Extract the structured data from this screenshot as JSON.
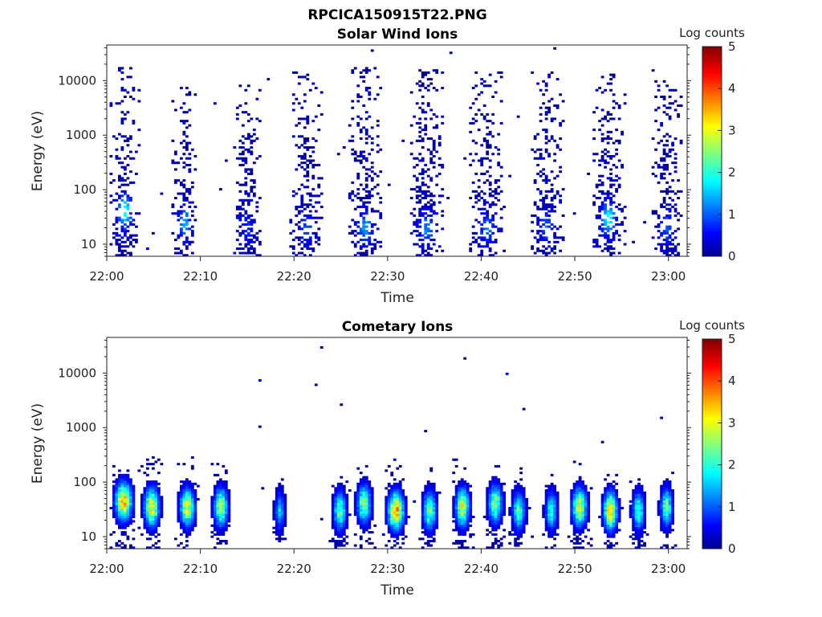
{
  "figure": {
    "title": "RPCICA150915T22.PNG"
  },
  "chart_data": [
    {
      "type": "heatmap",
      "title": "Solar Wind Ions",
      "xlabel": "Time",
      "ylabel": "Energy (eV)",
      "yscale": "log",
      "ylim": [
        6,
        45000
      ],
      "y_ticks": [
        "10",
        "100",
        "1000",
        "10000"
      ],
      "x_ticks": [
        "22:00",
        "22:10",
        "22:20",
        "22:30",
        "22:40",
        "22:50",
        "23:00"
      ],
      "xlim_minutes": [
        0,
        62
      ],
      "colorbar": {
        "title": "Log counts",
        "ticks": [
          "0",
          "1",
          "2",
          "3",
          "4",
          "5"
        ],
        "range": [
          0,
          5
        ],
        "colormap": "jet"
      },
      "bursts": [
        {
          "time_min": 1.9,
          "energy_max_eV": 20000,
          "peak_energy_eV": 40,
          "peak_log_counts": 1.9,
          "width_min": 3.0
        },
        {
          "time_min": 8.3,
          "energy_max_eV": 8000,
          "peak_energy_eV": 25,
          "peak_log_counts": 1.4,
          "width_min": 2.6
        },
        {
          "time_min": 15.0,
          "energy_max_eV": 9000,
          "peak_energy_eV": 20,
          "peak_log_counts": 0.6,
          "width_min": 2.8
        },
        {
          "time_min": 21.3,
          "energy_max_eV": 15000,
          "peak_energy_eV": 20,
          "peak_log_counts": 0.8,
          "width_min": 3.2
        },
        {
          "time_min": 27.6,
          "energy_max_eV": 18000,
          "peak_energy_eV": 20,
          "peak_log_counts": 1.2,
          "width_min": 3.4
        },
        {
          "time_min": 34.2,
          "energy_max_eV": 16000,
          "peak_energy_eV": 20,
          "peak_log_counts": 1.1,
          "width_min": 3.4
        },
        {
          "time_min": 40.6,
          "energy_max_eV": 15000,
          "peak_energy_eV": 20,
          "peak_log_counts": 1.0,
          "width_min": 3.4
        },
        {
          "time_min": 47.0,
          "energy_max_eV": 15000,
          "peak_energy_eV": 20,
          "peak_log_counts": 0.9,
          "width_min": 3.2
        },
        {
          "time_min": 53.6,
          "energy_max_eV": 14000,
          "peak_energy_eV": 30,
          "peak_log_counts": 1.8,
          "width_min": 3.2
        },
        {
          "time_min": 59.8,
          "energy_max_eV": 12000,
          "peak_energy_eV": 20,
          "peak_log_counts": 0.9,
          "width_min": 3.0
        }
      ]
    },
    {
      "type": "heatmap",
      "title": "Cometary Ions",
      "xlabel": "Time",
      "ylabel": "Energy (eV)",
      "yscale": "log",
      "ylim": [
        6,
        45000
      ],
      "y_ticks": [
        "10",
        "100",
        "1000",
        "10000"
      ],
      "x_ticks": [
        "22:00",
        "22:10",
        "22:20",
        "22:30",
        "22:40",
        "22:50",
        "23:00"
      ],
      "xlim_minutes": [
        0,
        62
      ],
      "colorbar": {
        "title": "Log counts",
        "ticks": [
          "0",
          "1",
          "2",
          "3",
          "4",
          "5"
        ],
        "range": [
          0,
          5
        ],
        "colormap": "jet"
      },
      "bursts": [
        {
          "time_min": 1.8,
          "energy_max_eV": 250,
          "peak_energy_eV": 45,
          "peak_log_counts": 3.4,
          "width_min": 3.0
        },
        {
          "time_min": 4.8,
          "energy_max_eV": 300,
          "peak_energy_eV": 35,
          "peak_log_counts": 3.2,
          "width_min": 2.6
        },
        {
          "time_min": 8.6,
          "energy_max_eV": 250,
          "peak_energy_eV": 35,
          "peak_log_counts": 2.9,
          "width_min": 2.6
        },
        {
          "time_min": 12.2,
          "energy_max_eV": 250,
          "peak_energy_eV": 35,
          "peak_log_counts": 2.8,
          "width_min": 2.4
        },
        {
          "time_min": 18.5,
          "energy_max_eV": 120,
          "peak_energy_eV": 30,
          "peak_log_counts": 1.6,
          "width_min": 1.6
        },
        {
          "time_min": 24.9,
          "energy_max_eV": 200,
          "peak_energy_eV": 30,
          "peak_log_counts": 2.4,
          "width_min": 2.2
        },
        {
          "time_min": 27.5,
          "energy_max_eV": 250,
          "peak_energy_eV": 40,
          "peak_log_counts": 2.6,
          "width_min": 2.4
        },
        {
          "time_min": 30.9,
          "energy_max_eV": 300,
          "peak_energy_eV": 30,
          "peak_log_counts": 3.6,
          "width_min": 2.8
        },
        {
          "time_min": 34.5,
          "energy_max_eV": 200,
          "peak_energy_eV": 30,
          "peak_log_counts": 2.4,
          "width_min": 2.4
        },
        {
          "time_min": 38.0,
          "energy_max_eV": 300,
          "peak_energy_eV": 35,
          "peak_log_counts": 3.0,
          "width_min": 2.4
        },
        {
          "time_min": 41.5,
          "energy_max_eV": 300,
          "peak_energy_eV": 40,
          "peak_log_counts": 2.6,
          "width_min": 2.4
        },
        {
          "time_min": 44.0,
          "energy_max_eV": 200,
          "peak_energy_eV": 30,
          "peak_log_counts": 2.2,
          "width_min": 2.2
        },
        {
          "time_min": 47.5,
          "energy_max_eV": 150,
          "peak_energy_eV": 30,
          "peak_log_counts": 2.0,
          "width_min": 2.0
        },
        {
          "time_min": 50.5,
          "energy_max_eV": 250,
          "peak_energy_eV": 35,
          "peak_log_counts": 3.0,
          "width_min": 2.6
        },
        {
          "time_min": 53.8,
          "energy_max_eV": 200,
          "peak_energy_eV": 30,
          "peak_log_counts": 3.5,
          "width_min": 2.4
        },
        {
          "time_min": 56.8,
          "energy_max_eV": 150,
          "peak_energy_eV": 30,
          "peak_log_counts": 2.2,
          "width_min": 2.0
        },
        {
          "time_min": 59.8,
          "energy_max_eV": 150,
          "peak_energy_eV": 35,
          "peak_log_counts": 2.4,
          "width_min": 2.0
        }
      ]
    }
  ]
}
